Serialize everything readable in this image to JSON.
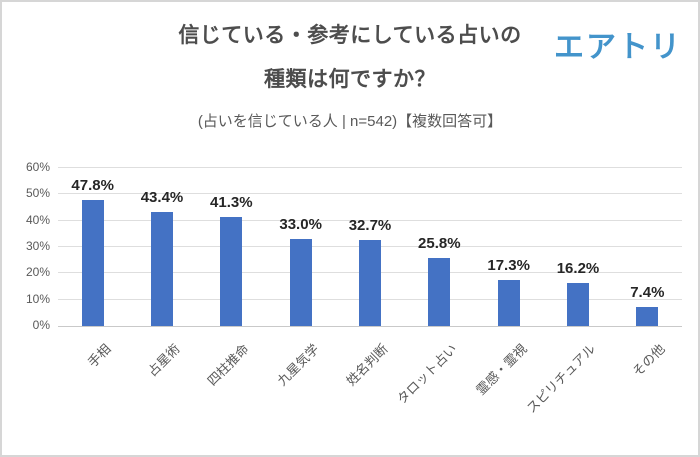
{
  "logo": {
    "text": "エアトリ",
    "color": "#4394cb"
  },
  "chart_data": {
    "type": "bar",
    "title_lines": [
      "信じている・参考にしている占いの",
      "種類は何ですか？"
    ],
    "title": "信じている・参考にしている占いの種類は何ですか？",
    "subtitle": "(占いを信じている人 | n=542)【複数回答可】",
    "categories": [
      "手相",
      "占星術",
      "四柱推命",
      "九星気学",
      "姓名判断",
      "タロット占い",
      "霊感・霊視",
      "スピリチュアル",
      "その他"
    ],
    "values": [
      47.8,
      43.4,
      41.3,
      33.0,
      32.7,
      25.8,
      17.3,
      16.2,
      7.4
    ],
    "value_suffix": "%",
    "yticks": [
      "0%",
      "10%",
      "20%",
      "30%",
      "40%",
      "50%",
      "60%"
    ],
    "ylim": [
      0,
      60
    ],
    "grid": true,
    "legend": "none",
    "xlabel": "",
    "ylabel": "",
    "bar_color": "#4472c4",
    "grid_color": "#dedede",
    "axis_color": "#c9c9c9",
    "tick_text_color": "#595959",
    "value_text_color": "#262626",
    "title_color": "#4d4d4d"
  }
}
